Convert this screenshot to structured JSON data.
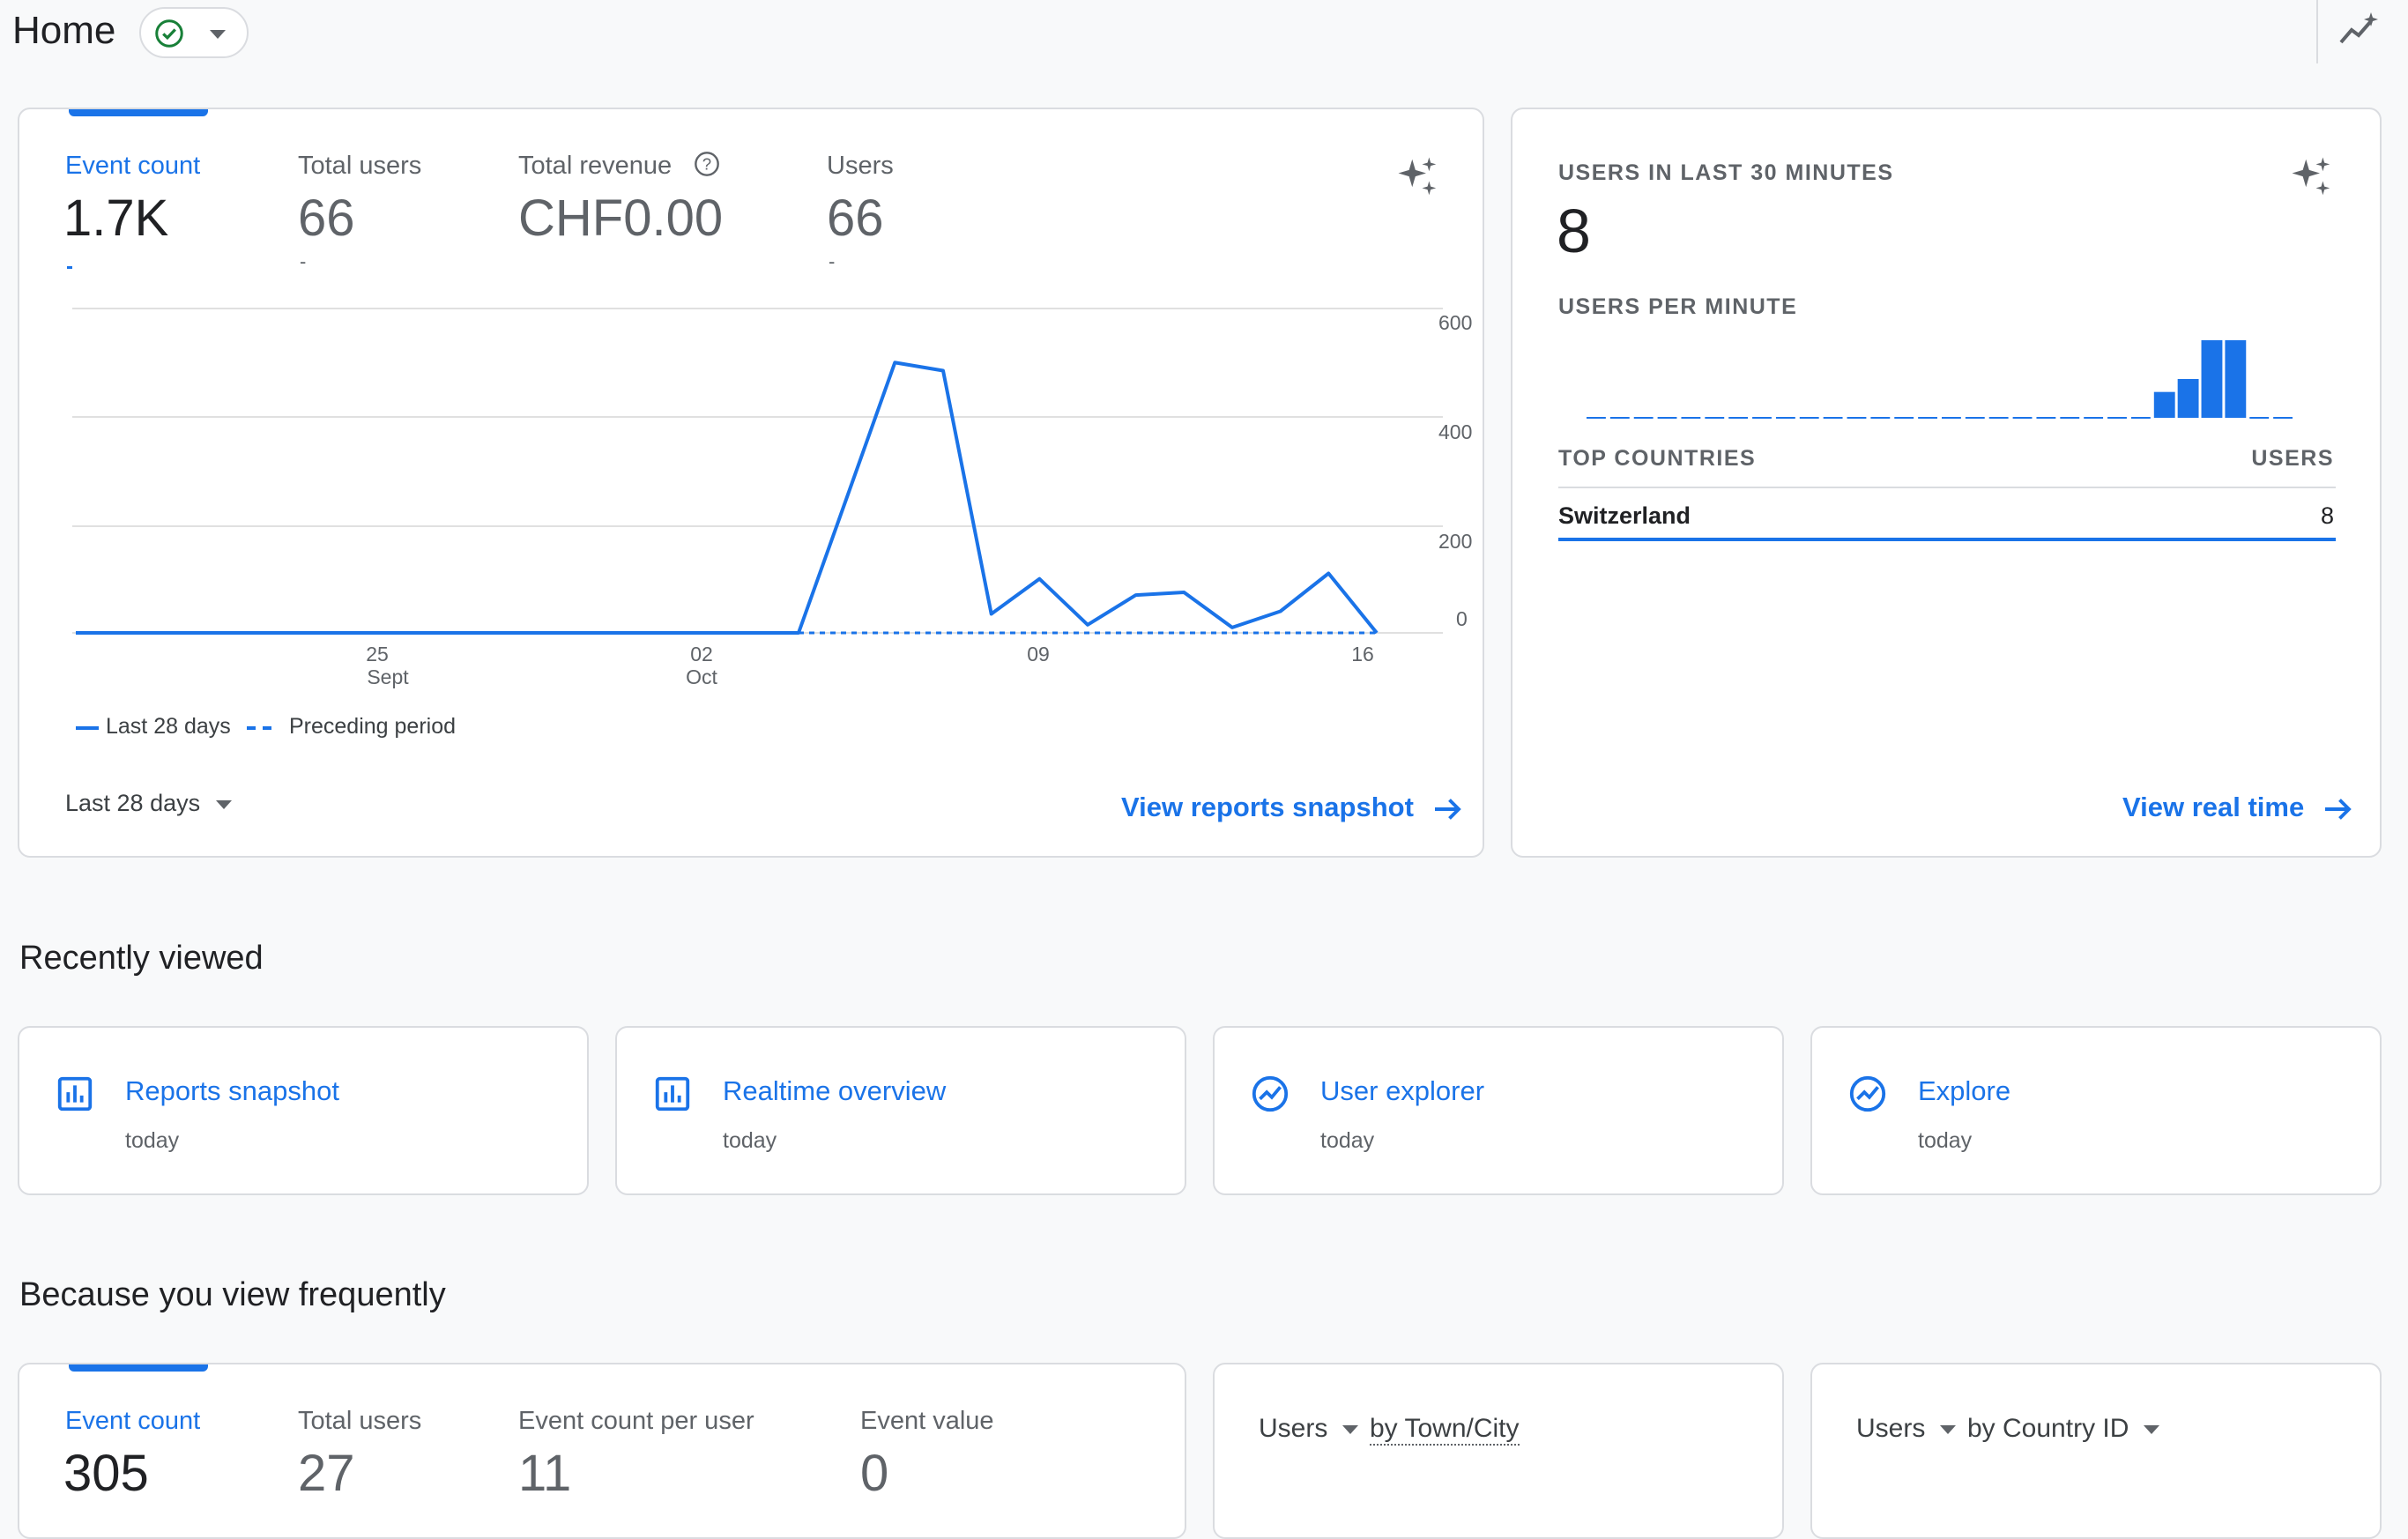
{
  "header": {
    "title": "Home",
    "status_icon": "check-circle-icon",
    "insights_icon": "insights-icon"
  },
  "overview": {
    "metrics": [
      {
        "label": "Event count",
        "value": "1.7K",
        "active": true
      },
      {
        "label": "Total users",
        "value": "66"
      },
      {
        "label": "Total revenue",
        "value": "CHF0.00",
        "help": true
      },
      {
        "label": "Users",
        "value": "66"
      }
    ],
    "dash": "-",
    "y_ticks": [
      "600",
      "400",
      "200",
      "0"
    ],
    "x_ticks": [
      {
        "day": "25",
        "month": "Sept"
      },
      {
        "day": "02",
        "month": "Oct"
      },
      {
        "day": "09",
        "month": ""
      },
      {
        "day": "16",
        "month": ""
      }
    ],
    "legend": {
      "current": "Last 28 days",
      "previous": "Preceding period"
    },
    "date_range": "Last 28 days",
    "link": "View reports snapshot"
  },
  "chart_data": {
    "type": "line",
    "y_ticks": [
      600,
      400,
      200,
      0
    ],
    "series": [
      {
        "name": "Last 28 days",
        "x": [
          "Sept 19",
          "Sept 20",
          "Sept 21",
          "Sept 22",
          "Sept 23",
          "Sept 24",
          "Sept 25",
          "Sept 26",
          "Sept 27",
          "Sept 28",
          "Sept 29",
          "Sept 30",
          "Oct 01",
          "Oct 02",
          "Oct 03",
          "Oct 04",
          "Oct 05",
          "Oct 06",
          "Oct 07",
          "Oct 08",
          "Oct 09",
          "Oct 10",
          "Oct 11",
          "Oct 12",
          "Oct 13",
          "Oct 14",
          "Oct 15",
          "Oct 16"
        ],
        "values": [
          0,
          0,
          0,
          0,
          0,
          0,
          0,
          0,
          0,
          0,
          0,
          0,
          0,
          0,
          0,
          0,
          250,
          500,
          485,
          35,
          100,
          15,
          70,
          75,
          10,
          40,
          110,
          0
        ]
      },
      {
        "name": "Preceding period",
        "values": [
          0,
          0,
          0,
          0,
          0,
          0,
          0,
          0,
          0,
          0,
          0,
          0,
          0,
          0,
          0,
          0,
          0,
          0,
          0,
          0,
          0,
          0,
          0,
          0,
          0,
          0,
          0,
          0
        ]
      }
    ]
  },
  "realtime": {
    "title": "USERS IN LAST 30 MINUTES",
    "value": "8",
    "per_minute_label": "USERS PER MINUTE",
    "per_minute": [
      0,
      0,
      0,
      0,
      0,
      0,
      0,
      0,
      0,
      0,
      0,
      0,
      0,
      0,
      0,
      0,
      0,
      0,
      0,
      0,
      0,
      0,
      0,
      0,
      1,
      1.5,
      3,
      3,
      0,
      0
    ],
    "countries_header": "TOP COUNTRIES",
    "users_header": "USERS",
    "countries": [
      {
        "name": "Switzerland",
        "users": "8"
      }
    ],
    "link": "View real time"
  },
  "recent": {
    "title": "Recently viewed",
    "items": [
      {
        "title": "Reports snapshot",
        "sub": "today",
        "icon": "bar-chart-icon"
      },
      {
        "title": "Realtime overview",
        "sub": "today",
        "icon": "bar-chart-icon"
      },
      {
        "title": "User explorer",
        "sub": "today",
        "icon": "trend-circle-icon"
      },
      {
        "title": "Explore",
        "sub": "today",
        "icon": "trend-circle-icon"
      }
    ]
  },
  "frequent": {
    "title": "Because you view frequently",
    "metrics": [
      {
        "label": "Event count",
        "value": "305",
        "active": true
      },
      {
        "label": "Total users",
        "value": "27"
      },
      {
        "label": "Event count per user",
        "value": "11"
      },
      {
        "label": "Event value",
        "value": "0"
      }
    ],
    "card2": {
      "metric": "Users",
      "by": "by Town/City"
    },
    "card3": {
      "metric": "Users",
      "by": "by Country ID"
    }
  },
  "colors": {
    "accent": "#1a73e8",
    "border": "#dadce0",
    "text": "#202124",
    "muted": "#5f6368"
  }
}
